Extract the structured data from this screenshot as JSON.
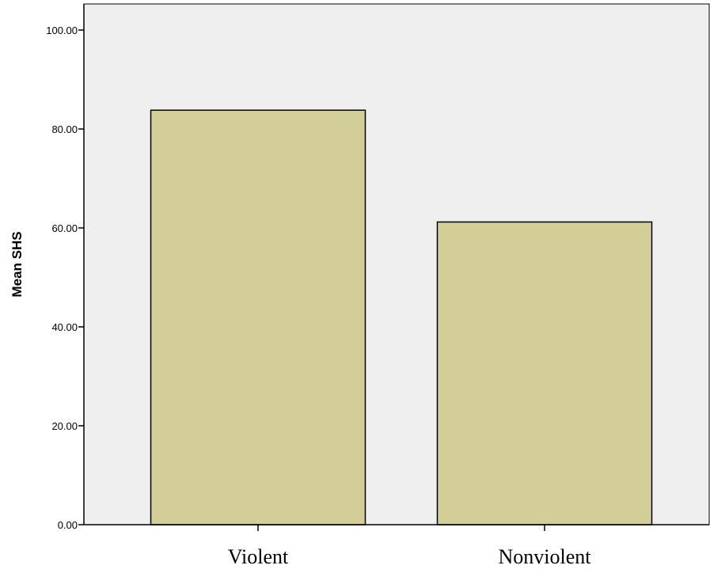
{
  "chart_data": {
    "type": "bar",
    "categories": [
      "Violent",
      "Nonviolent"
    ],
    "values": [
      83.8,
      61.2
    ],
    "title": "",
    "xlabel": "",
    "ylabel": "Mean SHS",
    "ylim": [
      0,
      100
    ],
    "yticks": [
      0,
      20,
      40,
      60,
      80,
      100
    ],
    "ytick_labels": [
      "0.00",
      "20.00",
      "40.00",
      "60.00",
      "80.00",
      "100.00"
    ],
    "grid": false,
    "legend": "none",
    "colors": {
      "plot_background": "#efefef",
      "bar_fill": "#d3ce98",
      "bar_stroke": "#000000",
      "axis": "#000000"
    }
  }
}
